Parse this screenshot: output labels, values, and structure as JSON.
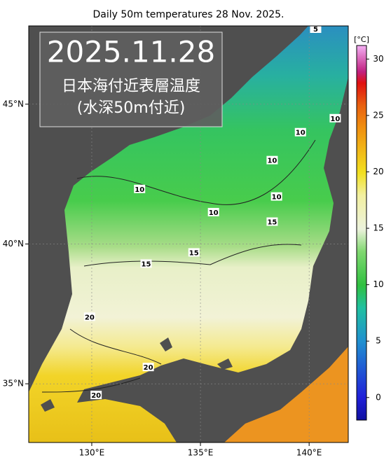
{
  "chart_data": {
    "type": "map",
    "title": "Daily 50m temperatures 28 Nov. 2025.",
    "date": "2025.11.28",
    "subtitle_1": "日本海付近表層温度",
    "subtitle_2": "(水深50m付近)",
    "xlim": [
      127.1,
      141.8
    ],
    "ylim": [
      32.9,
      47.8
    ],
    "xticks": [
      {
        "value": 130,
        "label": "130°E"
      },
      {
        "value": 135,
        "label": "135°E"
      },
      {
        "value": 140,
        "label": "140°E"
      }
    ],
    "yticks": [
      {
        "value": 45,
        "label": "45°N"
      },
      {
        "value": 40,
        "label": "40°N"
      },
      {
        "value": 35,
        "label": "35°N"
      }
    ],
    "colorbar": {
      "unit": "[°C]",
      "lim": [
        -2,
        31.2
      ],
      "ticks": [
        0,
        5,
        10,
        15,
        20,
        25,
        30
      ]
    },
    "contour_labels": [
      {
        "value": 5,
        "lon": 140.3,
        "lat": 47.7
      },
      {
        "value": 10,
        "lon": 132.2,
        "lat": 41.97
      },
      {
        "value": 10,
        "lon": 135.6,
        "lat": 41.14
      },
      {
        "value": 10,
        "lon": 138.3,
        "lat": 43.0
      },
      {
        "value": 10,
        "lon": 138.5,
        "lat": 41.7
      },
      {
        "value": 10,
        "lon": 139.6,
        "lat": 44.0
      },
      {
        "value": 10,
        "lon": 141.2,
        "lat": 44.5
      },
      {
        "value": 15,
        "lon": 138.3,
        "lat": 40.8
      },
      {
        "value": 15,
        "lon": 134.7,
        "lat": 39.7
      },
      {
        "value": 15,
        "lon": 132.5,
        "lat": 39.3
      },
      {
        "value": 20,
        "lon": 129.9,
        "lat": 37.4
      },
      {
        "value": 20,
        "lon": 132.6,
        "lat": 35.6
      },
      {
        "value": 20,
        "lon": 130.2,
        "lat": 34.6
      }
    ]
  }
}
